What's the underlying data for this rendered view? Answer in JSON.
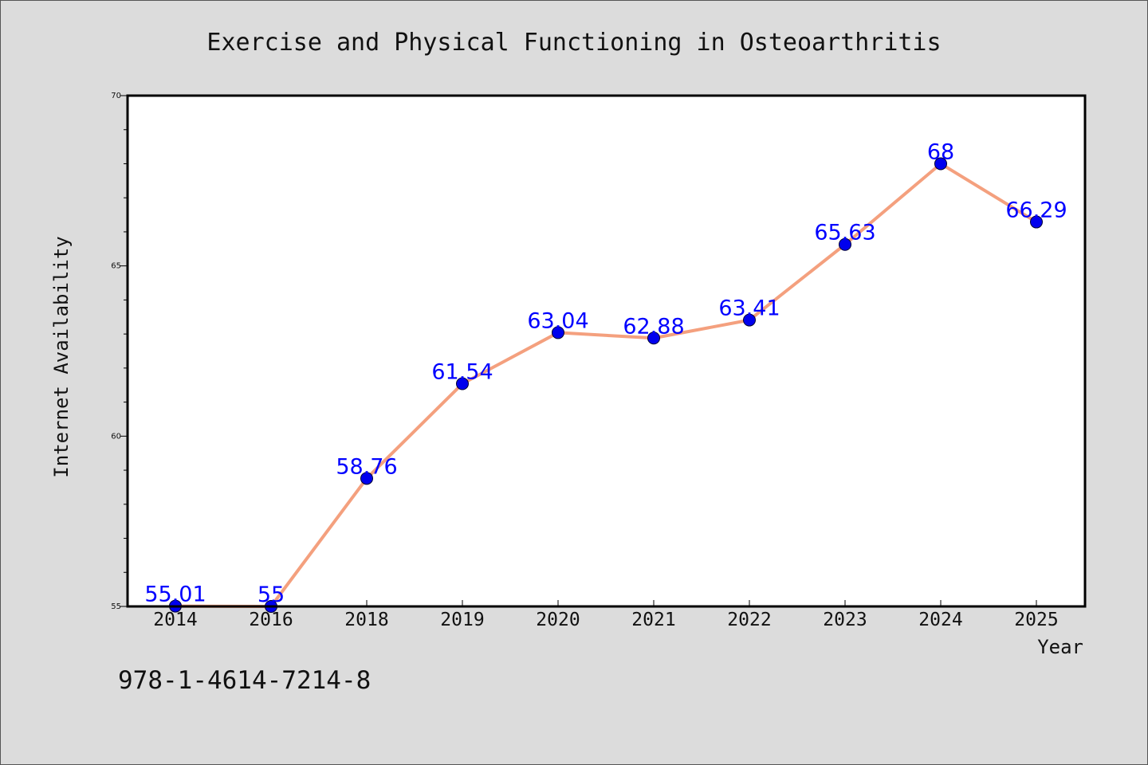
{
  "chart_data": {
    "type": "line",
    "title": "Exercise and Physical Functioning in Osteoarthritis",
    "xlabel": "Year",
    "ylabel": "Internet Availability",
    "categories": [
      "2014",
      "2016",
      "2018",
      "2019",
      "2020",
      "2021",
      "2022",
      "2023",
      "2024",
      "2025"
    ],
    "series": [
      {
        "values": [
          55.01,
          55,
          58.76,
          61.54,
          63.04,
          62.88,
          63.41,
          65.63,
          68,
          66.29
        ],
        "labels": [
          "55.01",
          "55",
          "58.76",
          "61.54",
          "63.04",
          "62.88",
          "63.41",
          "65.63",
          "68",
          "66.29"
        ]
      }
    ],
    "ylim": [
      55,
      70
    ],
    "y_ticks": [
      55,
      60,
      65,
      70
    ],
    "y_tick_labels": [
      "55",
      "60",
      "65",
      "70"
    ],
    "y_minor_step": 1,
    "grid": false,
    "legend": "none",
    "colors": {
      "line": "#f4a07e",
      "marker": "#0000ee",
      "data_label": "#0000ff",
      "plot_background": "#ffffff",
      "figure_background": "#dcdcdc",
      "frame": "#000000"
    }
  },
  "annotations": {
    "isbn": "978-1-4614-7214-8"
  }
}
